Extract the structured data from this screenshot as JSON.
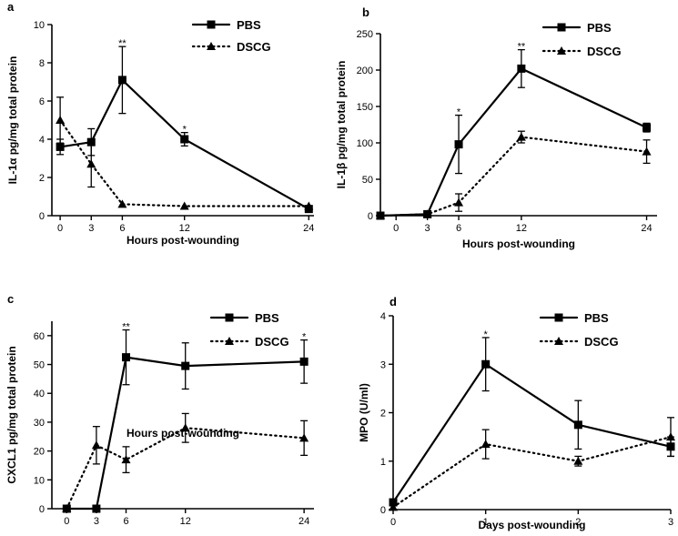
{
  "colors": {
    "ink": "#000000",
    "background": "#ffffff"
  },
  "chart_data": [
    {
      "panel": "a",
      "type": "line",
      "xlabel": "Hours post-wounding",
      "ylabel": "IL-1α pg/mg total protein",
      "xlim": [
        -0.8,
        24.5
      ],
      "ylim": [
        0,
        10
      ],
      "xticks": [
        0,
        3,
        6,
        12,
        24
      ],
      "yticks": [
        0,
        2,
        4,
        6,
        8,
        10
      ],
      "legend_position": "top-center",
      "series": [
        {
          "name": "PBS",
          "style": "solid",
          "marker": "square",
          "x": [
            0,
            3,
            6,
            12,
            24
          ],
          "y": [
            3.6,
            3.85,
            7.1,
            4.0,
            0.35
          ],
          "err": [
            0.4,
            0.7,
            1.75,
            0.35,
            0.1
          ]
        },
        {
          "name": "DSCG",
          "style": "dotted",
          "marker": "triangle",
          "x": [
            0,
            3,
            6,
            12,
            24
          ],
          "y": [
            5.0,
            2.7,
            0.6,
            0.5,
            0.5
          ],
          "err": [
            1.2,
            1.2,
            0,
            0,
            0
          ]
        }
      ],
      "annotations": [
        {
          "x": 6,
          "y": 8.85,
          "text": "**"
        },
        {
          "x": 12,
          "y": 4.35,
          "text": "*"
        }
      ]
    },
    {
      "panel": "b",
      "type": "line",
      "xlabel": "Hours post-wounding",
      "ylabel": "IL-1β pg/mg total  protein",
      "xlim": [
        -1.5,
        25
      ],
      "ylim": [
        0,
        250
      ],
      "xticks": [
        0,
        3,
        6,
        12,
        24
      ],
      "yticks": [
        0,
        50,
        100,
        150,
        200,
        250
      ],
      "legend_position": "top-right",
      "series": [
        {
          "name": "PBS",
          "style": "solid",
          "marker": "square",
          "x": [
            -1.5,
            3,
            6,
            12,
            24
          ],
          "y": [
            0,
            2,
            98,
            202,
            121
          ],
          "err": [
            0,
            0,
            40,
            26,
            6
          ]
        },
        {
          "name": "DSCG",
          "style": "dotted",
          "marker": "triangle",
          "x": [
            -1.5,
            3,
            6,
            12,
            24
          ],
          "y": [
            0,
            2,
            18,
            108,
            88
          ],
          "err": [
            0,
            0,
            12,
            8,
            16
          ]
        }
      ],
      "annotations": [
        {
          "x": 6,
          "y": 138,
          "text": "*"
        },
        {
          "x": 12,
          "y": 228,
          "text": "**"
        }
      ]
    },
    {
      "panel": "c",
      "type": "line",
      "xlabel": "Hours post-wounding",
      "ylabel": "CXCL1 pg/mg total protein",
      "xlim": [
        -1.5,
        25
      ],
      "ylim": [
        0,
        65
      ],
      "xticks": [
        0,
        3,
        6,
        12,
        24
      ],
      "yticks": [
        0,
        10,
        20,
        30,
        40,
        50,
        60
      ],
      "legend_position": "top-right",
      "series": [
        {
          "name": "PBS",
          "style": "solid",
          "marker": "square",
          "x": [
            0,
            3,
            6,
            12,
            24
          ],
          "y": [
            0,
            0,
            52.5,
            49.5,
            51
          ],
          "err": [
            0,
            0,
            9.5,
            8,
            7.5
          ]
        },
        {
          "name": "DSCG",
          "style": "dotted",
          "marker": "triangle",
          "x": [
            0,
            3,
            6,
            12,
            24
          ],
          "y": [
            0,
            22,
            17,
            28,
            24.5
          ],
          "err": [
            0,
            6.5,
            4.5,
            5,
            6
          ]
        }
      ],
      "annotations": [
        {
          "x": 6,
          "y": 62,
          "text": "**"
        },
        {
          "x": 24,
          "y": 58.5,
          "text": "*"
        }
      ]
    },
    {
      "panel": "d",
      "type": "line",
      "xlabel": "Days post-wounding",
      "ylabel": "MPO (U/ml)",
      "xlim": [
        0,
        3
      ],
      "ylim": [
        0,
        4
      ],
      "xticks": [
        0,
        1,
        2,
        3
      ],
      "yticks": [
        0,
        1,
        2,
        3,
        4
      ],
      "legend_position": "top-right",
      "series": [
        {
          "name": "PBS",
          "style": "solid",
          "marker": "square",
          "x": [
            0,
            1,
            2,
            3
          ],
          "y": [
            0.15,
            3.0,
            1.75,
            1.3
          ],
          "err": [
            0,
            0.55,
            0.5,
            0.2
          ]
        },
        {
          "name": "DSCG",
          "style": "dotted",
          "marker": "triangle",
          "x": [
            0,
            1,
            2,
            3
          ],
          "y": [
            0.05,
            1.35,
            1.0,
            1.5
          ],
          "err": [
            0,
            0.3,
            0.1,
            0.4
          ]
        }
      ],
      "annotations": [
        {
          "x": 1,
          "y": 3.55,
          "text": "*"
        }
      ]
    }
  ]
}
